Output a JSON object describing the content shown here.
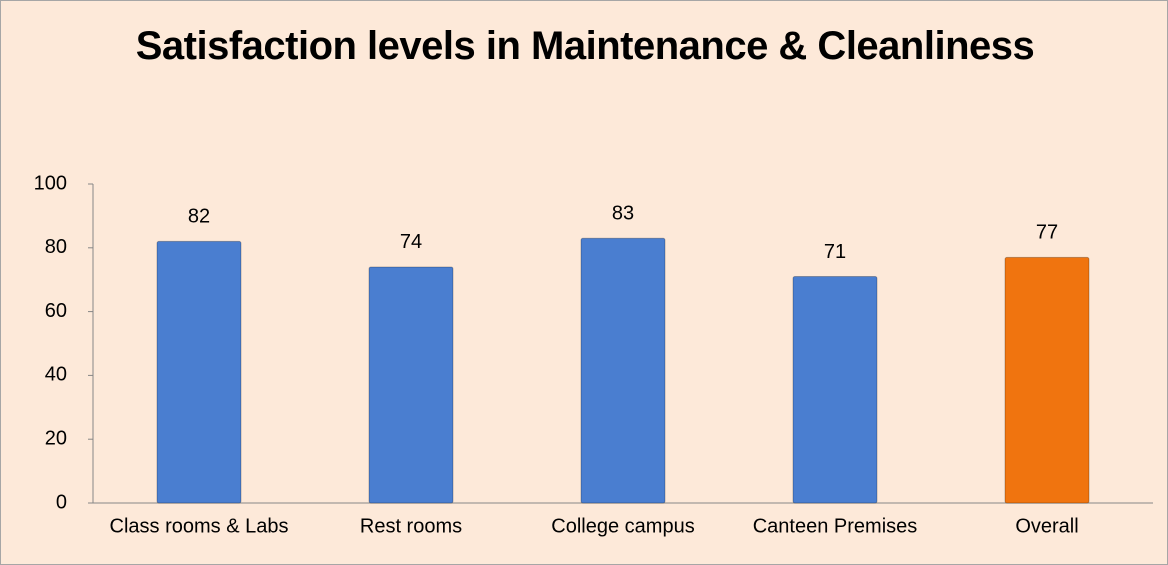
{
  "chart_data": {
    "type": "bar",
    "title": "Satisfaction levels in Maintenance & Cleanliness",
    "categories": [
      "Class rooms & Labs",
      "Rest rooms",
      "College campus",
      "Canteen Premises",
      "Overall"
    ],
    "values": [
      82,
      74,
      83,
      71,
      77
    ],
    "colors": [
      "#4a7ed0",
      "#4a7ed0",
      "#4a7ed0",
      "#4a7ed0",
      "#f0740f"
    ],
    "ylim": [
      0,
      100
    ],
    "yticks": [
      0,
      20,
      40,
      60,
      80,
      100
    ],
    "grid": false
  }
}
